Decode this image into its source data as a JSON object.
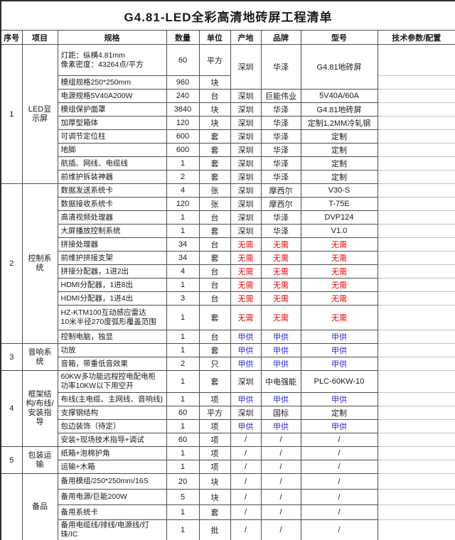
{
  "title": "G4.81-LED全彩高清地砖屏工程清单",
  "columns": [
    "序号",
    "项目",
    "规格",
    "数量",
    "单位",
    "产地",
    "品牌",
    "型号",
    "技术参数/配置"
  ],
  "colors": {
    "red": "#e60000",
    "blue": "#2b2bd0",
    "text": "#1a1a1a"
  },
  "sections": [
    {
      "index": "1",
      "item": "LED显示屏",
      "rows": [
        {
          "spec": "灯距：纵横4.81mm\n像素密度：43264点/平方",
          "qty": "60",
          "unit": "平方",
          "origin": "深圳",
          "brand": "华泽",
          "model": "G4.81地砖屏",
          "merge_down": 2
        },
        {
          "spec": "模组规格250*250mm",
          "qty": "960",
          "unit": "块",
          "merged_above": true
        },
        {
          "spec": "电源规格5V40A200W",
          "qty": "240",
          "unit": "台",
          "origin": "深圳",
          "brand": "巨能伟业",
          "model": "5V40A/60A"
        },
        {
          "spec": "模组保护面罩",
          "qty": "3840",
          "unit": "块",
          "origin": "深圳",
          "brand": "华泽",
          "model": "G4.81地砖屏"
        },
        {
          "spec": "加厚型箱体",
          "qty": "120",
          "unit": "块",
          "origin": "深圳",
          "brand": "华泽",
          "model": "定制1.2MM冷轧钢"
        },
        {
          "spec": "可调节定位柱",
          "qty": "600",
          "unit": "套",
          "origin": "深圳",
          "brand": "华泽",
          "model": "定制"
        },
        {
          "spec": "地脚",
          "qty": "600",
          "unit": "套",
          "origin": "深圳",
          "brand": "华泽",
          "model": "定制"
        },
        {
          "spec": "航插、网线、电缆线",
          "qty": "1",
          "unit": "套",
          "origin": "深圳",
          "brand": "华泽",
          "model": "定制"
        },
        {
          "spec": "前维护拆装神器",
          "qty": "2",
          "unit": "套",
          "origin": "深圳",
          "brand": "华泽",
          "model": "定制"
        }
      ]
    },
    {
      "index": "2",
      "item": "控制系统",
      "rows": [
        {
          "spec": "数据发送系统卡",
          "qty": "4",
          "unit": "张",
          "origin": "深圳",
          "brand": "摩西尔",
          "model": "V30-S"
        },
        {
          "spec": "数据接收系统卡",
          "qty": "120",
          "unit": "张",
          "origin": "深圳",
          "brand": "摩西尔",
          "model": "T-75E"
        },
        {
          "spec": "高清视频处理器",
          "qty": "1",
          "unit": "台",
          "origin": "深圳",
          "brand": "华泽",
          "model": "DVP124"
        },
        {
          "spec": "大屏播放控制系统",
          "qty": "1",
          "unit": "套",
          "origin": "深圳",
          "brand": "华泽",
          "model": "V1.0"
        },
        {
          "spec": "拼接处理器",
          "qty": "34",
          "unit": "台",
          "origin": "无需",
          "brand": "无需",
          "model": "无需",
          "style": "red"
        },
        {
          "spec": "前维护拼接支架",
          "qty": "34",
          "unit": "套",
          "origin": "无需",
          "brand": "无需",
          "model": "无需",
          "style": "red"
        },
        {
          "spec": "拼接分配器，1进2出",
          "qty": "4",
          "unit": "台",
          "origin": "无需",
          "brand": "无需",
          "model": "无需",
          "style": "red"
        },
        {
          "spec": "HDMI分配器，1进8出",
          "qty": "1",
          "unit": "台",
          "origin": "无需",
          "brand": "无需",
          "model": "无需",
          "style": "red"
        },
        {
          "spec": "HDMI分配器，1进4出",
          "qty": "3",
          "unit": "台",
          "origin": "无需",
          "brand": "无需",
          "model": "无需",
          "style": "red"
        },
        {
          "spec": "HZ-KTM100互动感应雷达\n10米半径270度弧形覆盖范围",
          "qty": "1",
          "unit": "套",
          "origin": "无需",
          "brand": "无需",
          "model": "无需",
          "style": "red"
        },
        {
          "spec": "控制电脑，独显",
          "qty": "1",
          "unit": "台",
          "origin": "甲供",
          "brand": "甲供",
          "model": "甲供",
          "style": "blue"
        }
      ]
    },
    {
      "index": "3",
      "item": "音响系统",
      "rows": [
        {
          "spec": "功放",
          "qty": "1",
          "unit": "套",
          "origin": "甲供",
          "brand": "甲供",
          "model": "甲供",
          "style": "blue"
        },
        {
          "spec": "音箱，带重低音效果",
          "qty": "2",
          "unit": "只",
          "origin": "甲供",
          "brand": "甲供",
          "model": "甲供",
          "style": "blue"
        }
      ]
    },
    {
      "index": "4",
      "item": "框架结构/布线/安装指导",
      "rows": [
        {
          "spec": "60KW多功能远程控电配电柜\n功率10KW以下用空开",
          "qty": "1",
          "unit": "套",
          "origin": "深圳",
          "brand": "中电强能",
          "model": "PLC-60KW-10"
        },
        {
          "spec": "布线(主电缆、主网线、音响线)",
          "qty": "1",
          "unit": "项",
          "origin": "甲供",
          "brand": "甲供",
          "model": "甲供",
          "style": "blue"
        },
        {
          "spec": "支撑钢结构",
          "qty": "60",
          "unit": "平方",
          "origin": "深圳",
          "brand": "国标",
          "model": "定制"
        },
        {
          "spec": "包边装饰（待定）",
          "qty": "1",
          "unit": "项",
          "origin": "甲供",
          "brand": "甲供",
          "model": "甲供",
          "style": "blue"
        },
        {
          "spec": "安装+现场技术指导+调试",
          "qty": "60",
          "unit": "项",
          "origin": "/",
          "brand": "/",
          "model": "/"
        }
      ]
    },
    {
      "index": "5",
      "item": "包装运输",
      "rows": [
        {
          "spec": "纸箱+泡棉护角",
          "qty": "1",
          "unit": "项",
          "origin": "/",
          "brand": "/",
          "model": "/"
        },
        {
          "spec": "运输+木箱",
          "qty": "1",
          "unit": "项",
          "origin": "/",
          "brand": "/",
          "model": "/"
        }
      ]
    },
    {
      "index": "",
      "item": "备品",
      "rows": [
        {
          "spec": "备用模组/250*250mm/16S",
          "qty": "20",
          "unit": "块",
          "origin": "/",
          "brand": "/",
          "model": "/"
        },
        {
          "spec": "备用电源/巨能200W",
          "qty": "5",
          "unit": "块",
          "origin": "/",
          "brand": "/",
          "model": "/"
        },
        {
          "spec": "备用系统卡",
          "qty": "1",
          "unit": "套",
          "origin": "/",
          "brand": "/",
          "model": "/"
        },
        {
          "spec": "备用电缆线/排线/电源线/灯珠/IC",
          "qty": "1",
          "unit": "批",
          "origin": "/",
          "brand": "/",
          "model": "/"
        }
      ]
    }
  ]
}
